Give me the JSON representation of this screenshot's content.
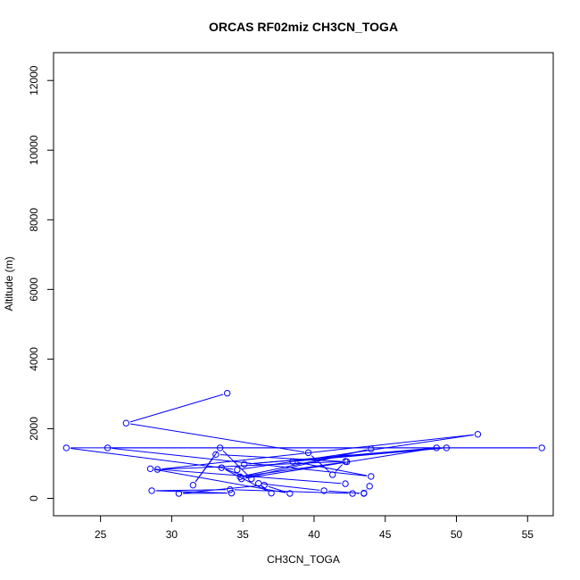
{
  "chart_data": {
    "type": "line",
    "title": "ORCAS RF02miz CH3CN_TOGA",
    "xlabel": "CH3CN_TOGA",
    "ylabel": "Altitude (m)",
    "xlim": [
      21.7,
      56.8
    ],
    "ylim": [
      -500,
      12800
    ],
    "xticks": [
      25,
      30,
      35,
      40,
      45,
      50,
      55
    ],
    "yticks": [
      0,
      2000,
      4000,
      6000,
      8000,
      10000,
      12000
    ],
    "grid": false,
    "series": [
      {
        "color": "#0000ff",
        "marker": "open-circle",
        "line": true,
        "points": [
          [
            33.9,
            3020
          ],
          [
            26.8,
            2160
          ],
          [
            39.6,
            1310
          ],
          [
            41.3,
            680
          ],
          [
            42.2,
            1060
          ],
          [
            29.0,
            830
          ],
          [
            51.5,
            1840
          ],
          [
            34.6,
            820
          ],
          [
            22.6,
            1450
          ],
          [
            56.0,
            1450
          ],
          [
            25.5,
            1450
          ],
          [
            44.0,
            630
          ],
          [
            38.5,
            1060
          ],
          [
            49.3,
            1450
          ],
          [
            35.1,
            980
          ],
          [
            48.6,
            1450
          ],
          [
            34.9,
            560
          ],
          [
            44.0,
            1420
          ],
          [
            34.8,
            620
          ],
          [
            42.3,
            1050
          ],
          [
            33.1,
            1260
          ],
          [
            31.5,
            380
          ],
          [
            33.4,
            1450
          ],
          [
            35.6,
            560
          ],
          [
            33.5,
            880
          ],
          [
            37.0,
            150
          ],
          [
            36.1,
            430
          ],
          [
            40.7,
            220
          ],
          [
            43.5,
            140
          ],
          [
            43.9,
            350
          ],
          [
            43.5,
            150
          ],
          [
            42.7,
            140
          ],
          [
            34.1,
            250
          ],
          [
            28.6,
            220
          ],
          [
            34.2,
            150
          ],
          [
            30.5,
            140
          ],
          [
            36.5,
            380
          ],
          [
            38.3,
            140
          ],
          [
            28.5,
            850
          ],
          [
            42.2,
            420
          ]
        ]
      }
    ]
  }
}
